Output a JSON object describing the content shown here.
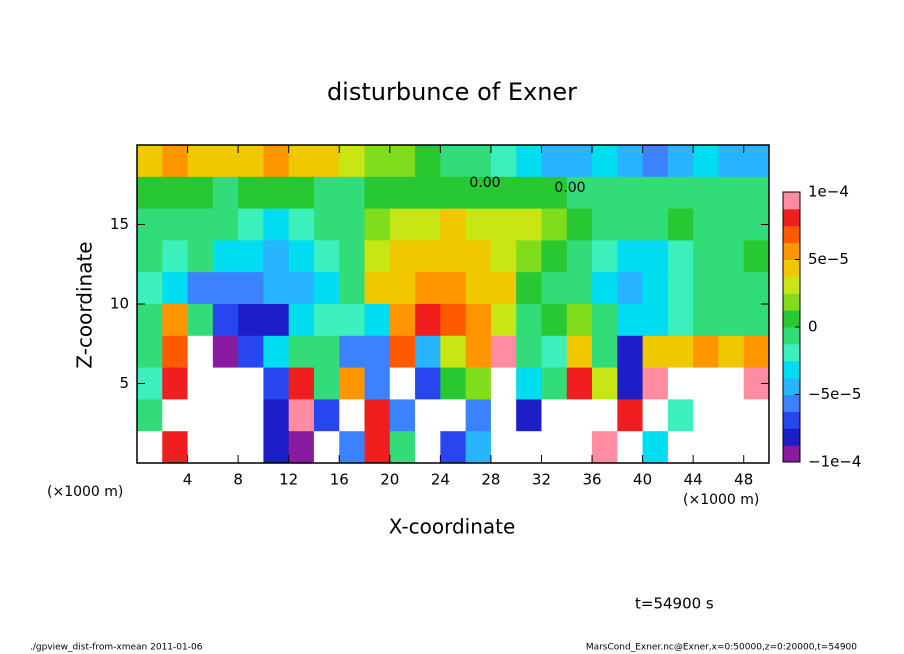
{
  "chart_data": {
    "type": "contour",
    "title": "disturbunce of Exner",
    "x_label": "X-coordinate",
    "y_label": "Z-coordinate",
    "x_unit_left": "(×1000 m)",
    "x_unit_right": "(×1000 m)",
    "time_label": "t=54900 s",
    "footer_left": "./gpview_dist-from-xmean  2011-01-06",
    "footer_right": "MarsCond_Exner.nc@Exner,x=0:50000,z=0:20000,t=54900",
    "annotations": [
      "0.00",
      "0.00"
    ],
    "xlim": [
      0,
      50
    ],
    "ylim": [
      0,
      20
    ],
    "xticks": [
      4,
      8,
      12,
      16,
      20,
      24,
      28,
      32,
      36,
      40,
      44,
      48
    ],
    "yticks": [
      5,
      10,
      15
    ],
    "x": [
      1,
      3,
      5,
      7,
      9,
      11,
      13,
      15,
      17,
      19,
      21,
      23,
      25,
      27,
      29,
      31,
      33,
      35,
      37,
      39,
      41,
      43,
      45,
      47,
      49
    ],
    "y": [
      19,
      17,
      15,
      13,
      11,
      9,
      7,
      5,
      3,
      1
    ],
    "z": [
      [
        5e-05,
        6e-05,
        5e-05,
        4e-05,
        5e-05,
        6e-05,
        5e-05,
        4e-05,
        3e-05,
        2e-05,
        2e-05,
        1e-05,
        0,
        -1e-05,
        -2e-05,
        -3e-05,
        -4e-05,
        -4e-05,
        -3e-05,
        -4e-05,
        -5e-05,
        -4e-05,
        -3e-05,
        -4e-05,
        -4e-05
      ],
      [
        1e-05,
        1e-05,
        1e-05,
        0,
        1e-05,
        1e-05,
        1e-05,
        0,
        0,
        1e-05,
        1e-05,
        1e-05,
        1e-05,
        1e-05,
        1e-05,
        1e-05,
        1e-05,
        0,
        0,
        0,
        0,
        -1e-05,
        0,
        0,
        0
      ],
      [
        0,
        -1e-05,
        0,
        -1e-05,
        -2e-05,
        -3e-05,
        -2e-05,
        -1e-05,
        0,
        2e-05,
        3e-05,
        3e-05,
        4e-05,
        3e-05,
        3e-05,
        3e-05,
        2e-05,
        1e-05,
        0,
        0,
        0,
        1e-05,
        0,
        0,
        0
      ],
      [
        0,
        -2e-05,
        -1e-05,
        -3e-05,
        -3e-05,
        -4e-05,
        -3e-05,
        -2e-05,
        -1e-05,
        3e-05,
        4e-05,
        5e-05,
        4e-05,
        4e-05,
        3e-05,
        2e-05,
        1e-05,
        0,
        -2e-05,
        -3e-05,
        -3e-05,
        -2e-05,
        -1e-05,
        0,
        1e-05
      ],
      [
        -2e-05,
        -3e-05,
        -6e-05,
        -6e-05,
        -5e-05,
        -4e-05,
        -4e-05,
        -3e-05,
        -1e-05,
        4e-05,
        5e-05,
        6e-05,
        6e-05,
        5e-05,
        4e-05,
        1e-05,
        0,
        -1e-05,
        -3e-05,
        -4e-05,
        -3e-05,
        -2e-05,
        -1e-05,
        0,
        0
      ],
      [
        0,
        6e-05,
        0,
        -7e-05,
        -8e-05,
        -8e-05,
        -3e-05,
        -2e-05,
        -2e-05,
        -3e-05,
        6e-05,
        8e-05,
        7e-05,
        6e-05,
        3e-05,
        0,
        1e-05,
        2e-05,
        -1e-05,
        -3e-05,
        -3e-05,
        -2e-05,
        -1e-05,
        0,
        0
      ],
      [
        0,
        7e-05,
        0.00015,
        -9e-05,
        -7e-05,
        -3e-05,
        -1e-05,
        0,
        -5e-05,
        -6e-05,
        7e-05,
        -4e-05,
        3e-05,
        6e-05,
        9e-05,
        0,
        -2e-05,
        5e-05,
        0,
        -8e-05,
        4e-05,
        5e-05,
        6e-05,
        5e-05,
        6e-05
      ],
      [
        -2e-05,
        8e-05,
        0.00015,
        0.00015,
        0.00015,
        -7e-05,
        8e-05,
        0,
        6e-05,
        -6e-05,
        0.00015,
        -7e-05,
        1e-05,
        2e-05,
        0.00015,
        -3e-05,
        0,
        8e-05,
        3e-05,
        -8e-05,
        9e-05,
        0.00015,
        0.00015,
        0.00015,
        9e-05
      ],
      [
        0,
        0.00015,
        0.00015,
        0.00015,
        0.00015,
        -8e-05,
        9e-05,
        -7e-05,
        0.00015,
        8e-05,
        -6e-05,
        0.00015,
        0.00015,
        -6e-05,
        0.00015,
        -8e-05,
        0.00015,
        0.00015,
        0.00015,
        8e-05,
        0.00015,
        -2e-05,
        0.00015,
        0.00015,
        0.00015
      ],
      [
        0.00015,
        8e-05,
        0.00015,
        0.00015,
        0.00015,
        -8e-05,
        -9e-05,
        0.00015,
        -6e-05,
        8e-05,
        0,
        0.00015,
        -7e-05,
        -4e-05,
        0.00015,
        0.00015,
        0.00015,
        0.00015,
        9e-05,
        0.00015,
        -3e-05,
        0.00015,
        0.00015,
        0.00015,
        0.00015
      ]
    ],
    "levels": [
      -0.0001,
      -8.75e-05,
      -7.5e-05,
      -6.25e-05,
      -5e-05,
      -3.75e-05,
      -2.5e-05,
      -1.25e-05,
      0,
      1.25e-05,
      2.5e-05,
      3.75e-05,
      5e-05,
      6.25e-05,
      7.5e-05,
      8.75e-05,
      0.0001
    ],
    "colors": [
      "#8a1aa0",
      "#1e1ec8",
      "#2846f0",
      "#3c82ff",
      "#28b4ff",
      "#00dcf0",
      "#3cf0be",
      "#32dc78",
      "#28c832",
      "#82dc1e",
      "#c8e614",
      "#f0c800",
      "#ff9600",
      "#ff5a00",
      "#f01e1e",
      "#ff8ca0"
    ],
    "over_color": "#ffffff",
    "cticks": [
      {
        "value": -0.0001,
        "label": "−1e−4"
      },
      {
        "value": -5e-05,
        "label": "−5e−5"
      },
      0,
      {
        "value": 5e-05,
        "label": "5e−5"
      },
      {
        "value": 0.0001,
        "label": "1e−4"
      }
    ]
  }
}
